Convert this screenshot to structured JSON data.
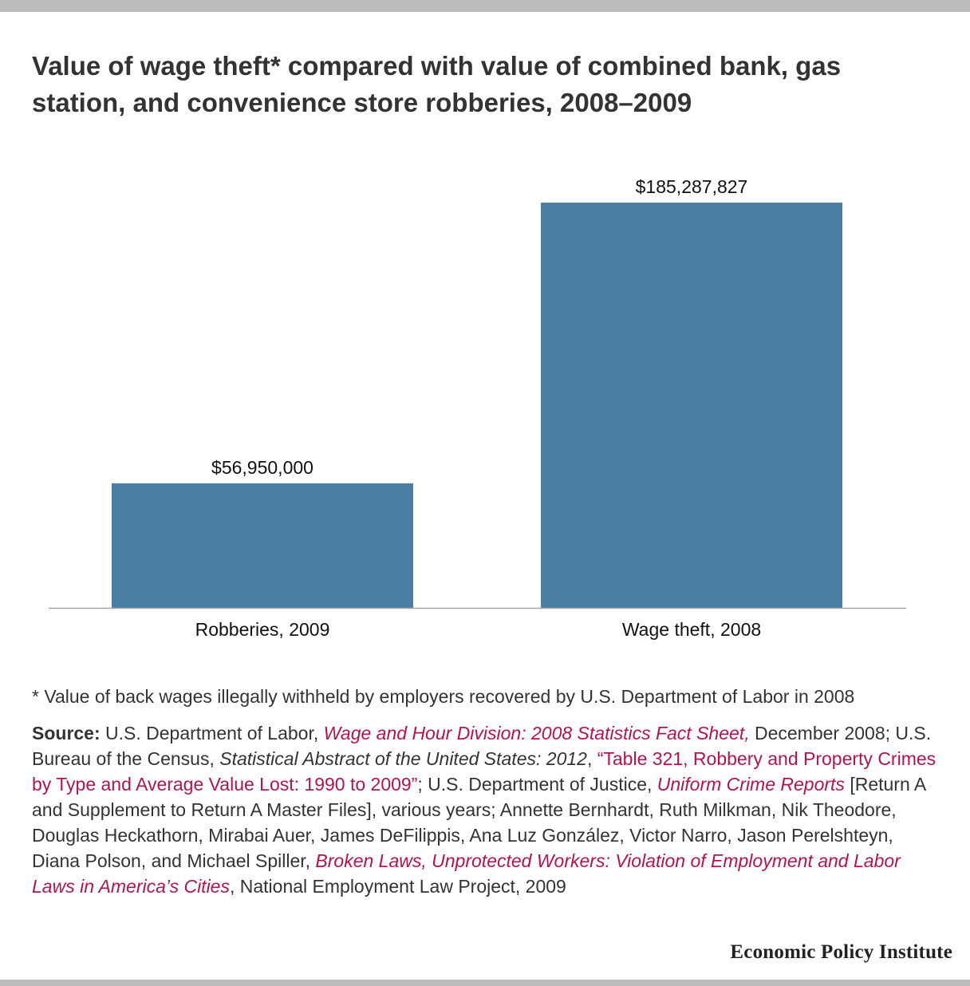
{
  "title": "Value of wage theft* compared with value of combined bank, gas station, and convenience store robberies, 2008–2009",
  "chart_data": {
    "type": "bar",
    "title": "Value of wage theft* compared with value of combined bank, gas station, and convenience store robberies, 2008–2009",
    "categories": [
      "Robberies, 2009",
      "Wage theft, 2008"
    ],
    "values": [
      56950000,
      185287827
    ],
    "value_labels": [
      "$56,950,000",
      "$185,287,827"
    ],
    "xlabel": "",
    "ylabel": "",
    "ylim": [
      0,
      185287827
    ],
    "grid": false,
    "legend": "none",
    "bar_color": "#4a7fa3",
    "baseline_color": "#a6a6a6"
  },
  "footnote": "* Value of back wages illegally withheld by employers recovered by U.S. Department of Labor in 2008",
  "source": {
    "label": "Source:",
    "t1": " U.S. Department of Labor, ",
    "l1": "Wage and Hour Division: 2008 Statistics Fact Sheet,",
    "t2": " December 2008; U.S. Bureau of the Census, ",
    "i1": "Statistical Abstract of the United States: 2012",
    "t3": ", ",
    "l2": "“Table 321, Robbery and Property Crimes by Type and Average Value Lost: 1990 to 2009”",
    "t4": "; U.S. Department of Justice, ",
    "l3": "Uniform Crime Reports",
    "t5": " [Return A and Supplement to Return A Master Files], various years; Annette Bernhardt, Ruth Milkman, Nik Theodore, Douglas Heckathorn, Mirabai Auer, James DeFilippis, Ana Luz González, Victor Narro, Jason Perelshteyn, Diana Polson, and Michael Spiller, ",
    "l4": "Broken Laws, Unprotected Workers: Violation of Employment and Labor Laws in America’s Cities",
    "t6": ", National Employment Law Project, 2009"
  },
  "brand": "Economic Policy Institute",
  "colors": {
    "accent_link": "#b5134f",
    "text": "#333333",
    "rule": "#bcbcbc"
  }
}
